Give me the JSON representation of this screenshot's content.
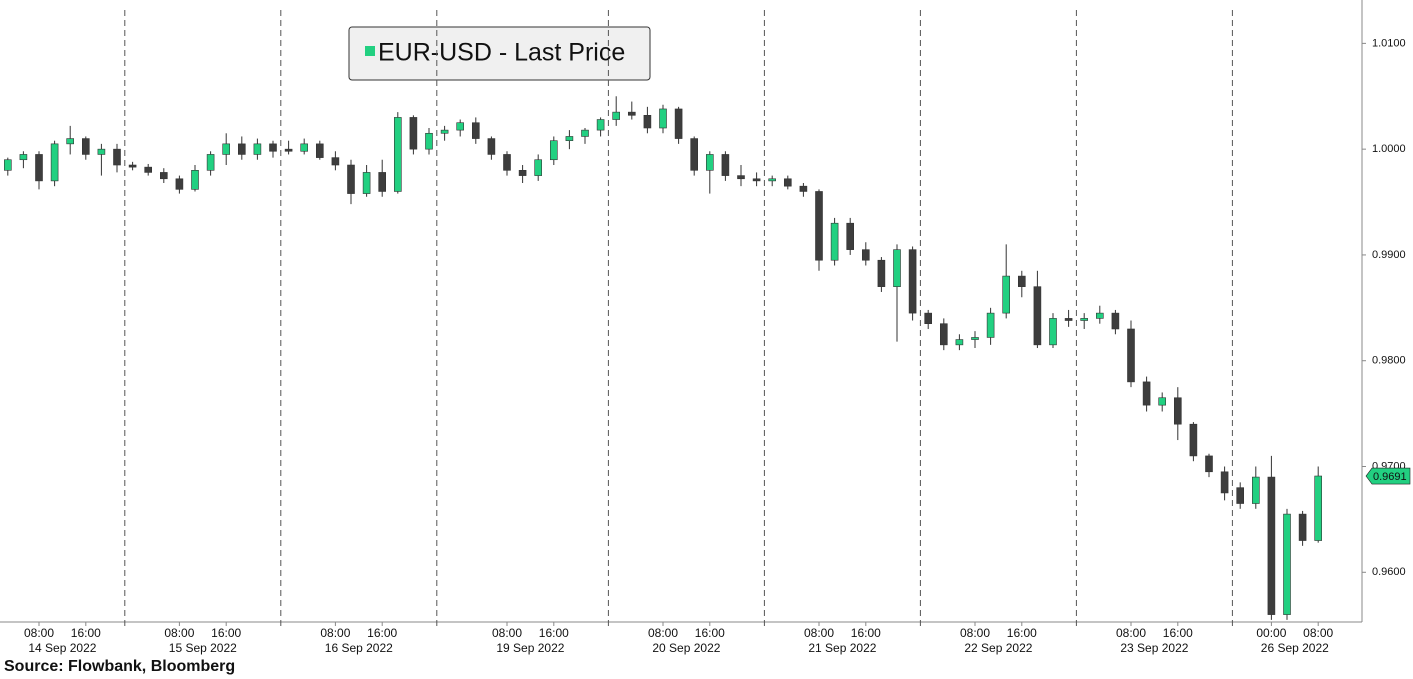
{
  "chart_data": {
    "type": "candlestick",
    "legend": "EUR-USD - Last Price",
    "source": "Source: Flowbank, Bloomberg",
    "up_color": "#22d081",
    "down_color": "#3d3d3d",
    "ylim": [
      0.9553,
      1.0141
    ],
    "yticks": [
      {
        "value": 0.96,
        "label": "0.9600"
      },
      {
        "value": 0.97,
        "label": "0.9700"
      },
      {
        "value": 0.98,
        "label": "0.9800"
      },
      {
        "value": 0.99,
        "label": "0.9900"
      },
      {
        "value": 1.0,
        "label": "1.0000"
      },
      {
        "value": 1.01,
        "label": "1.0100"
      }
    ],
    "last_price": 0.9691,
    "days": [
      {
        "label": "14 Sep 2022",
        "times": [
          null,
          null,
          "08:00",
          null,
          null,
          "16:00",
          null,
          null
        ],
        "open": [
          0.998,
          0.999,
          0.9995,
          0.997,
          1.0005,
          1.001,
          0.9995,
          1.0
        ],
        "high": [
          0.9992,
          0.9998,
          0.9998,
          1.0008,
          1.0022,
          1.0012,
          1.0005,
          1.0005
        ],
        "low": [
          0.9975,
          0.9982,
          0.9962,
          0.9965,
          0.9995,
          0.999,
          0.9975,
          0.9978
        ],
        "close": [
          0.999,
          0.9995,
          0.997,
          1.0005,
          1.001,
          0.9995,
          1.0,
          0.9985
        ]
      },
      {
        "label": "15 Sep 2022",
        "times": [
          null,
          null,
          null,
          "08:00",
          null,
          null,
          "16:00",
          null,
          null,
          null
        ],
        "open": [
          0.9985,
          0.9983,
          0.9978,
          0.9972,
          0.9962,
          0.998,
          0.9995,
          1.0005,
          0.9995,
          1.0005
        ],
        "high": [
          0.9988,
          0.9986,
          0.9982,
          0.9975,
          0.9985,
          0.9998,
          1.0015,
          1.0012,
          1.001,
          1.0008
        ],
        "low": [
          0.998,
          0.9975,
          0.9968,
          0.9958,
          0.996,
          0.9975,
          0.9985,
          0.999,
          0.999,
          0.9992
        ],
        "close": [
          0.9983,
          0.9978,
          0.9972,
          0.9962,
          0.998,
          0.9995,
          1.0005,
          0.9995,
          1.0005,
          0.9998
        ]
      },
      {
        "label": "16 Sep 2022",
        "times": [
          null,
          null,
          null,
          "08:00",
          null,
          null,
          "16:00",
          null,
          null,
          null
        ],
        "open": [
          1.0,
          0.9998,
          1.0005,
          0.9992,
          0.9985,
          0.9958,
          0.9978,
          0.996,
          1.003,
          1.0
        ],
        "high": [
          1.0008,
          1.001,
          1.0008,
          0.9998,
          0.999,
          0.9985,
          0.999,
          1.0035,
          1.0032,
          1.002
        ],
        "low": [
          0.9995,
          0.9995,
          0.999,
          0.998,
          0.9948,
          0.9955,
          0.9955,
          0.9958,
          0.9995,
          0.9995
        ],
        "close": [
          0.9998,
          1.0005,
          0.9992,
          0.9985,
          0.9958,
          0.9978,
          0.996,
          1.003,
          1.0,
          1.0015
        ]
      },
      {
        "label": "19 Sep 2022",
        "times": [
          null,
          null,
          null,
          null,
          "08:00",
          null,
          null,
          "16:00",
          null,
          null,
          null
        ],
        "open": [
          1.0015,
          1.0018,
          1.0025,
          1.001,
          0.9995,
          0.998,
          0.9975,
          0.999,
          1.0008,
          1.0012,
          1.0018
        ],
        "high": [
          1.0022,
          1.0028,
          1.003,
          1.0012,
          0.9998,
          0.9985,
          0.9995,
          1.0012,
          1.0018,
          1.002,
          1.003
        ],
        "low": [
          1.0008,
          1.0012,
          1.0005,
          0.999,
          0.9975,
          0.9968,
          0.997,
          0.9985,
          1.0,
          1.0005,
          1.0012
        ],
        "close": [
          1.0018,
          1.0025,
          1.001,
          0.9995,
          0.998,
          0.9975,
          0.999,
          1.0008,
          1.0012,
          1.0018,
          1.0028
        ]
      },
      {
        "label": "20 Sep 2022",
        "times": [
          null,
          null,
          null,
          "08:00",
          null,
          null,
          "16:00",
          null,
          null,
          null
        ],
        "open": [
          1.0028,
          1.0035,
          1.0032,
          1.002,
          1.0038,
          1.001,
          0.998,
          0.9995,
          0.9975,
          0.9972
        ],
        "high": [
          1.005,
          1.0045,
          1.004,
          1.0042,
          1.004,
          1.0012,
          0.9998,
          0.9998,
          0.9985,
          0.9978
        ],
        "low": [
          1.0022,
          1.0028,
          1.0015,
          1.0015,
          1.0005,
          0.9975,
          0.9958,
          0.997,
          0.9965,
          0.9965
        ],
        "close": [
          1.0035,
          1.0032,
          1.002,
          1.0038,
          1.001,
          0.998,
          0.9995,
          0.9975,
          0.9972,
          0.997
        ]
      },
      {
        "label": "21 Sep 2022",
        "times": [
          null,
          null,
          null,
          "08:00",
          null,
          null,
          "16:00",
          null,
          null,
          null
        ],
        "open": [
          0.997,
          0.9972,
          0.9965,
          0.996,
          0.9895,
          0.993,
          0.9905,
          0.9895,
          0.987,
          0.9905
        ],
        "high": [
          0.9975,
          0.9975,
          0.9968,
          0.9962,
          0.9935,
          0.9935,
          0.9912,
          0.9898,
          0.991,
          0.9908
        ],
        "low": [
          0.9965,
          0.9962,
          0.9955,
          0.9885,
          0.989,
          0.99,
          0.989,
          0.9865,
          0.9818,
          0.9838
        ],
        "close": [
          0.9972,
          0.9965,
          0.996,
          0.9895,
          0.993,
          0.9905,
          0.9895,
          0.987,
          0.9905,
          0.9845
        ]
      },
      {
        "label": "22 Sep 2022",
        "times": [
          null,
          null,
          null,
          "08:00",
          null,
          null,
          "16:00",
          null,
          null,
          null
        ],
        "open": [
          0.9845,
          0.9835,
          0.9815,
          0.982,
          0.9822,
          0.9845,
          0.988,
          0.987,
          0.9815,
          0.984
        ],
        "high": [
          0.9848,
          0.984,
          0.9825,
          0.9828,
          0.985,
          0.991,
          0.9885,
          0.9885,
          0.9845,
          0.9848
        ],
        "low": [
          0.983,
          0.981,
          0.981,
          0.9812,
          0.9815,
          0.984,
          0.986,
          0.9812,
          0.9812,
          0.9832
        ],
        "close": [
          0.9835,
          0.9815,
          0.982,
          0.9822,
          0.9845,
          0.988,
          0.987,
          0.9815,
          0.984,
          0.9838
        ]
      },
      {
        "label": "23 Sep 2022",
        "times": [
          null,
          null,
          null,
          "08:00",
          null,
          null,
          "16:00",
          null,
          null,
          null
        ],
        "open": [
          0.9838,
          0.984,
          0.9845,
          0.983,
          0.978,
          0.9758,
          0.9765,
          0.974,
          0.971,
          0.9695
        ],
        "high": [
          0.9845,
          0.9852,
          0.9848,
          0.9838,
          0.9785,
          0.977,
          0.9775,
          0.9742,
          0.9712,
          0.97
        ],
        "low": [
          0.983,
          0.9835,
          0.9825,
          0.9775,
          0.9752,
          0.9752,
          0.9725,
          0.9705,
          0.969,
          0.9668
        ],
        "close": [
          0.984,
          0.9845,
          0.983,
          0.978,
          0.9758,
          0.9765,
          0.974,
          0.971,
          0.9695,
          0.9675
        ]
      },
      {
        "label": "26 Sep 2022",
        "times": [
          null,
          null,
          "00:00",
          null,
          null,
          "08:00"
        ],
        "open": [
          0.968,
          0.9665,
          0.969,
          0.956,
          0.9655,
          0.963
        ],
        "high": [
          0.9685,
          0.97,
          0.971,
          0.966,
          0.9658,
          0.97
        ],
        "low": [
          0.966,
          0.966,
          0.9555,
          0.9555,
          0.9625,
          0.9628
        ],
        "close": [
          0.9665,
          0.969,
          0.956,
          0.9655,
          0.963,
          0.9691
        ]
      }
    ]
  }
}
